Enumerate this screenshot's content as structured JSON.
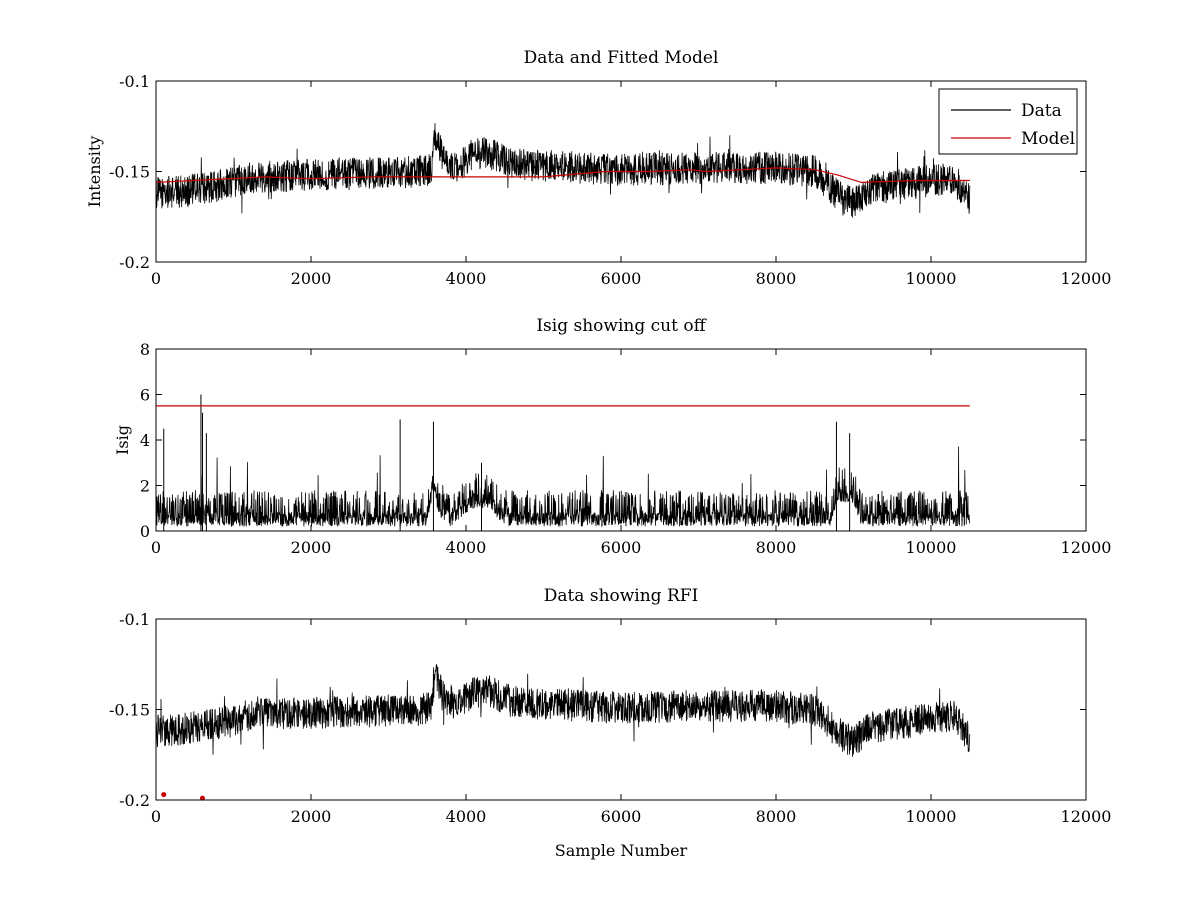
{
  "chart_data": [
    {
      "type": "line",
      "title": "Data and Fitted Model",
      "xlabel": "",
      "ylabel": "Intensity",
      "xlim": [
        0,
        12000
      ],
      "ylim": [
        -0.2,
        -0.1
      ],
      "xticks": [
        0,
        2000,
        4000,
        6000,
        8000,
        10000,
        12000
      ],
      "yticks": [
        -0.2,
        -0.15,
        -0.1
      ],
      "legend": {
        "placement": "top-right",
        "entries": [
          "Data",
          "Model"
        ]
      },
      "grid": false,
      "series": [
        {
          "name": "Data",
          "color": "#000000",
          "x_range": [
            0,
            10500
          ],
          "noise_amplitude": 0.009,
          "baseline": [
            [
              0,
              -0.162
            ],
            [
              300,
              -0.161
            ],
            [
              800,
              -0.158
            ],
            [
              1200,
              -0.153
            ],
            [
              2000,
              -0.152
            ],
            [
              2800,
              -0.151
            ],
            [
              3400,
              -0.15
            ],
            [
              3550,
              -0.149
            ],
            [
              3600,
              -0.13
            ],
            [
              3700,
              -0.143
            ],
            [
              3900,
              -0.148
            ],
            [
              4100,
              -0.14
            ],
            [
              4300,
              -0.14
            ],
            [
              4600,
              -0.146
            ],
            [
              6000,
              -0.149
            ],
            [
              7000,
              -0.148
            ],
            [
              8000,
              -0.148
            ],
            [
              8500,
              -0.15
            ],
            [
              8800,
              -0.163
            ],
            [
              9000,
              -0.168
            ],
            [
              9200,
              -0.16
            ],
            [
              10000,
              -0.155
            ],
            [
              10300,
              -0.154
            ],
            [
              10500,
              -0.166
            ]
          ]
        },
        {
          "name": "Model",
          "color": "#cc0000",
          "values": [
            [
              0,
              -0.156
            ],
            [
              1400,
              -0.153
            ],
            [
              2000,
              -0.154
            ],
            [
              2800,
              -0.153
            ],
            [
              4000,
              -0.153
            ],
            [
              5000,
              -0.153
            ],
            [
              5800,
              -0.15
            ],
            [
              6400,
              -0.15
            ],
            [
              6900,
              -0.149
            ],
            [
              7100,
              -0.15
            ],
            [
              8000,
              -0.148
            ],
            [
              8500,
              -0.149
            ],
            [
              8800,
              -0.152
            ],
            [
              9100,
              -0.156
            ],
            [
              9800,
              -0.155
            ],
            [
              10500,
              -0.155
            ]
          ]
        }
      ]
    },
    {
      "type": "line",
      "title": "Isig showing cut off",
      "xlabel": "",
      "ylabel": "Isig",
      "xlim": [
        0,
        12000
      ],
      "ylim": [
        0,
        8
      ],
      "xticks": [
        0,
        2000,
        4000,
        6000,
        8000,
        10000,
        12000
      ],
      "yticks": [
        0,
        2,
        4,
        6,
        8
      ],
      "grid": false,
      "series": [
        {
          "name": "",
          "color": "#000000",
          "x_range": [
            0,
            10500
          ],
          "noise_amplitude": 1.6,
          "baseline": [
            [
              0,
              0.2
            ],
            [
              3500,
              0.2
            ],
            [
              3580,
              1.8
            ],
            [
              3650,
              0.6
            ],
            [
              3800,
              0.2
            ],
            [
              4100,
              1.0
            ],
            [
              4300,
              1.0
            ],
            [
              4500,
              0.2
            ],
            [
              8700,
              0.2
            ],
            [
              8800,
              1.2
            ],
            [
              9000,
              1.2
            ],
            [
              9100,
              0.2
            ],
            [
              10500,
              0.2
            ]
          ],
          "spikes": [
            [
              0,
              4.9
            ],
            [
              580,
              6.0
            ],
            [
              600,
              5.2
            ],
            [
              100,
              4.5
            ],
            [
              650,
              4.3
            ],
            [
              3150,
              4.9
            ],
            [
              3580,
              4.8
            ],
            [
              4200,
              3.0
            ],
            [
              8780,
              4.8
            ],
            [
              8950,
              4.3
            ]
          ]
        },
        {
          "name": "cut off",
          "color": "#cc0000",
          "values": [
            [
              0,
              5.5
            ],
            [
              10500,
              5.5
            ]
          ]
        }
      ]
    },
    {
      "type": "line",
      "title": "Data showing RFI",
      "xlabel": "Sample Number",
      "ylabel": "",
      "xlim": [
        0,
        12000
      ],
      "ylim": [
        -0.2,
        -0.1
      ],
      "xticks": [
        0,
        2000,
        4000,
        6000,
        8000,
        10000,
        12000
      ],
      "yticks": [
        -0.2,
        -0.15,
        -0.1
      ],
      "grid": false,
      "series": [
        {
          "name": "Data",
          "color": "#000000",
          "x_range": [
            0,
            10500
          ],
          "noise_amplitude": 0.009,
          "baseline": [
            [
              0,
              -0.162
            ],
            [
              300,
              -0.161
            ],
            [
              800,
              -0.158
            ],
            [
              1200,
              -0.153
            ],
            [
              2000,
              -0.152
            ],
            [
              2800,
              -0.151
            ],
            [
              3400,
              -0.15
            ],
            [
              3550,
              -0.149
            ],
            [
              3600,
              -0.13
            ],
            [
              3700,
              -0.143
            ],
            [
              3900,
              -0.148
            ],
            [
              4100,
              -0.14
            ],
            [
              4300,
              -0.14
            ],
            [
              4600,
              -0.146
            ],
            [
              6000,
              -0.149
            ],
            [
              7000,
              -0.148
            ],
            [
              8000,
              -0.148
            ],
            [
              8500,
              -0.15
            ],
            [
              8800,
              -0.163
            ],
            [
              9000,
              -0.168
            ],
            [
              9200,
              -0.16
            ],
            [
              10000,
              -0.155
            ],
            [
              10300,
              -0.154
            ],
            [
              10500,
              -0.166
            ]
          ]
        },
        {
          "name": "RFI",
          "color": "#cc0000",
          "marker": "dot",
          "points": [
            [
              100,
              -0.197
            ],
            [
              600,
              -0.199
            ]
          ]
        }
      ]
    }
  ]
}
